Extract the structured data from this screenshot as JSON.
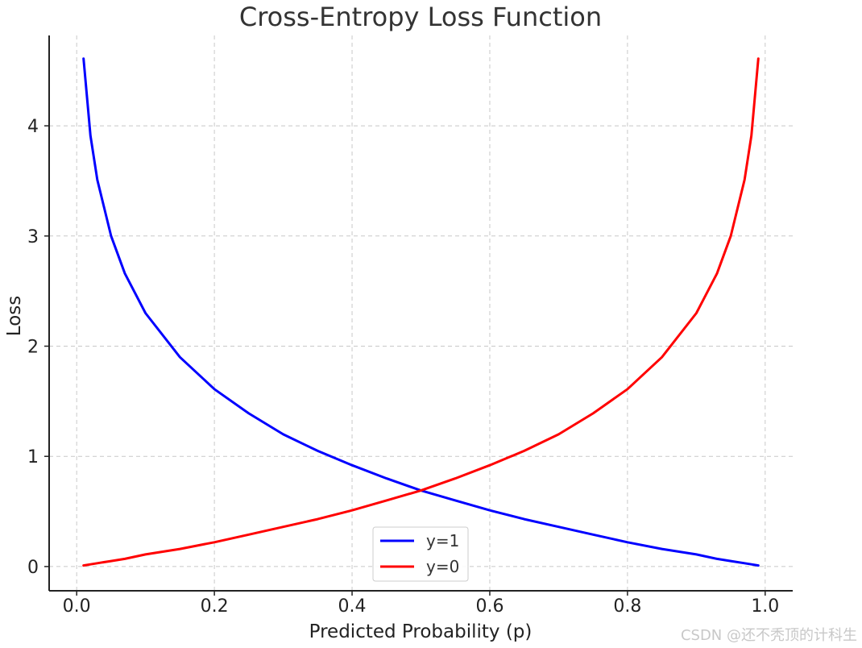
{
  "chart_data": {
    "type": "line",
    "title": "Cross-Entropy Loss Function",
    "xlabel": "Predicted Probability (p)",
    "ylabel": "Loss",
    "xlim": [
      -0.04,
      1.04
    ],
    "ylim": [
      -0.22,
      4.82
    ],
    "xticks": [
      0.0,
      0.2,
      0.4,
      0.6,
      0.8,
      1.0
    ],
    "xtick_labels": [
      "0.0",
      "0.2",
      "0.4",
      "0.6",
      "0.8",
      "1.0"
    ],
    "yticks": [
      0,
      1,
      2,
      3,
      4
    ],
    "ytick_labels": [
      "0",
      "1",
      "2",
      "3",
      "4"
    ],
    "grid": true,
    "legend_position": "bottom-center",
    "x": [
      0.01,
      0.02,
      0.03,
      0.05,
      0.07,
      0.1,
      0.15,
      0.2,
      0.25,
      0.3,
      0.35,
      0.4,
      0.45,
      0.5,
      0.55,
      0.6,
      0.65,
      0.7,
      0.75,
      0.8,
      0.85,
      0.9,
      0.93,
      0.95,
      0.97,
      0.98,
      0.99
    ],
    "series": [
      {
        "name": "y=1",
        "color": "#0000ff",
        "values": [
          4.61,
          3.91,
          3.51,
          3.0,
          2.66,
          2.3,
          1.9,
          1.61,
          1.39,
          1.2,
          1.05,
          0.92,
          0.8,
          0.69,
          0.6,
          0.51,
          0.43,
          0.36,
          0.29,
          0.22,
          0.16,
          0.11,
          0.07,
          0.05,
          0.03,
          0.02,
          0.01
        ]
      },
      {
        "name": "y=0",
        "color": "#ff0000",
        "values": [
          0.01,
          0.02,
          0.03,
          0.05,
          0.07,
          0.11,
          0.16,
          0.22,
          0.29,
          0.36,
          0.43,
          0.51,
          0.6,
          0.69,
          0.8,
          0.92,
          1.05,
          1.2,
          1.39,
          1.61,
          1.9,
          2.3,
          2.66,
          3.0,
          3.51,
          3.91,
          4.61
        ]
      }
    ]
  },
  "watermark": "CSDN @还不秃顶的计科生"
}
